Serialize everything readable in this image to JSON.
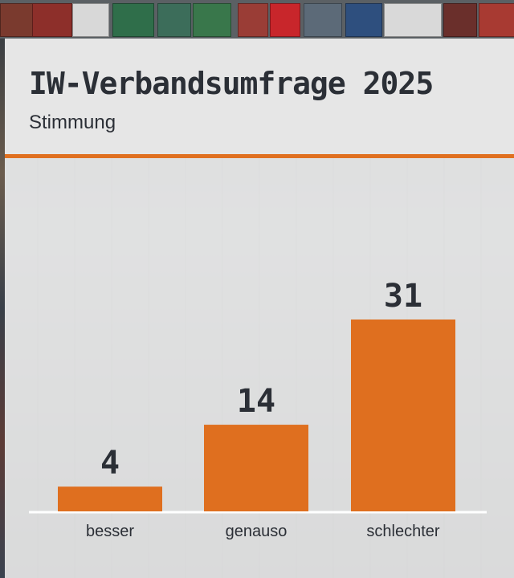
{
  "header": {
    "title": "IW-Verbandsumfrage 2025",
    "subtitle": "Stimmung"
  },
  "colors": {
    "accent": "#df6f1f",
    "text": "#2b2f36",
    "panel": "#e6e6e6"
  },
  "chart_data": {
    "type": "bar",
    "categories": [
      "besser",
      "genauso",
      "schlechter"
    ],
    "values": [
      4,
      14,
      31
    ],
    "title": "IW-Verbandsumfrage 2025",
    "subtitle": "Stimmung",
    "ylim": [
      0,
      31
    ],
    "grid": false,
    "legend": "none"
  }
}
